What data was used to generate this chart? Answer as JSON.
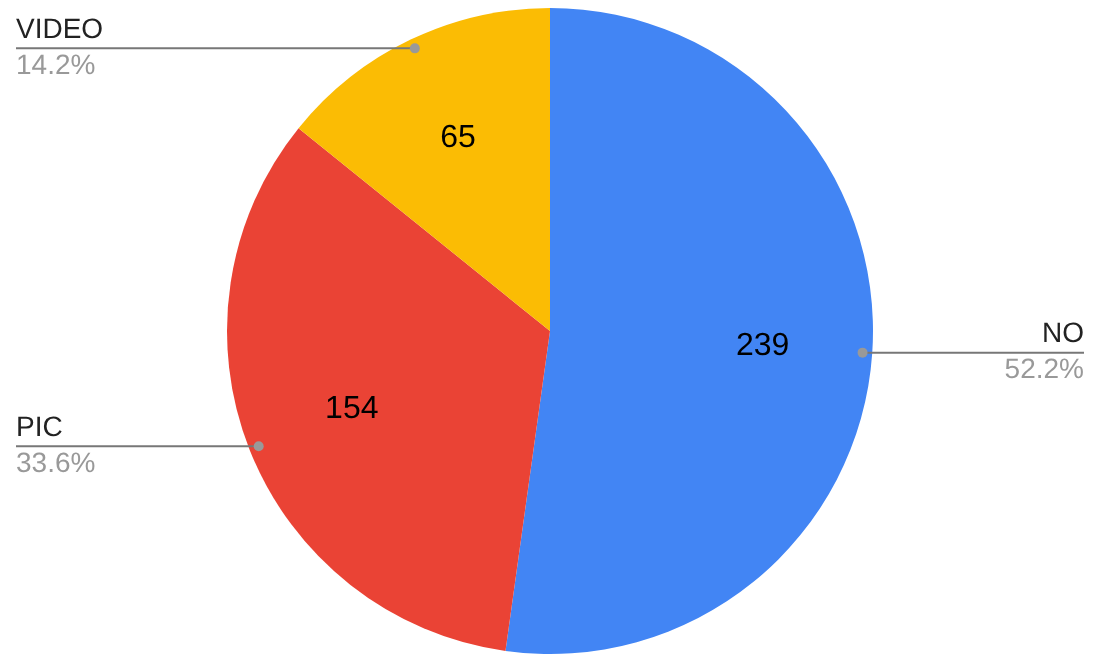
{
  "chart_data": {
    "type": "pie",
    "categories": [
      "NO",
      "PIC",
      "VIDEO"
    ],
    "values": [
      52.2,
      33.6,
      14.2
    ],
    "colors": [
      "#4285f4",
      "#ea4335",
      "#fbbc04"
    ],
    "value_labels": [
      "52.2%",
      "33.6%",
      "14.2%"
    ],
    "annotations": [
      "239",
      "154",
      "65"
    ]
  }
}
